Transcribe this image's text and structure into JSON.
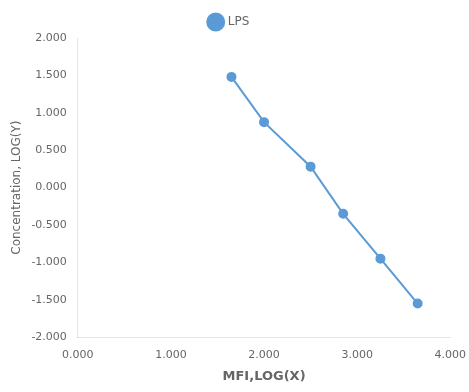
{
  "chart_data": {
    "type": "line",
    "x": [
      1.65,
      2.0,
      2.5,
      2.85,
      3.25,
      3.65
    ],
    "series": [
      {
        "name": "LPS",
        "color": "#5b9bd5",
        "marker": "circle",
        "values": [
          1.48,
          0.875,
          0.28,
          -0.35,
          -0.95,
          -1.55
        ]
      }
    ],
    "xlabel": "MFI,LOG(X)",
    "ylabel": "Concentration, LOG(Y)",
    "xlim": [
      0.0,
      4.0
    ],
    "ylim": [
      -2.0,
      2.0
    ],
    "xticks": [
      {
        "value": 0,
        "label": "0.000"
      },
      {
        "value": 1,
        "label": "1.000"
      },
      {
        "value": 2,
        "label": "2.000"
      },
      {
        "value": 3,
        "label": "3.000"
      },
      {
        "value": 4,
        "label": "4.000"
      }
    ],
    "yticks": [
      {
        "value": -2,
        "label": "-2.000"
      },
      {
        "value": -1.5,
        "label": "-1.500"
      },
      {
        "value": -1,
        "label": "-1.000"
      },
      {
        "value": -0.5,
        "label": "-0.500"
      },
      {
        "value": 0,
        "label": "0.000"
      },
      {
        "value": 0.5,
        "label": "0.500"
      },
      {
        "value": 1,
        "label": "1.000"
      },
      {
        "value": 1.5,
        "label": "1.500"
      },
      {
        "value": 2,
        "label": "2.000"
      }
    ],
    "grid": false,
    "legend": "top"
  }
}
